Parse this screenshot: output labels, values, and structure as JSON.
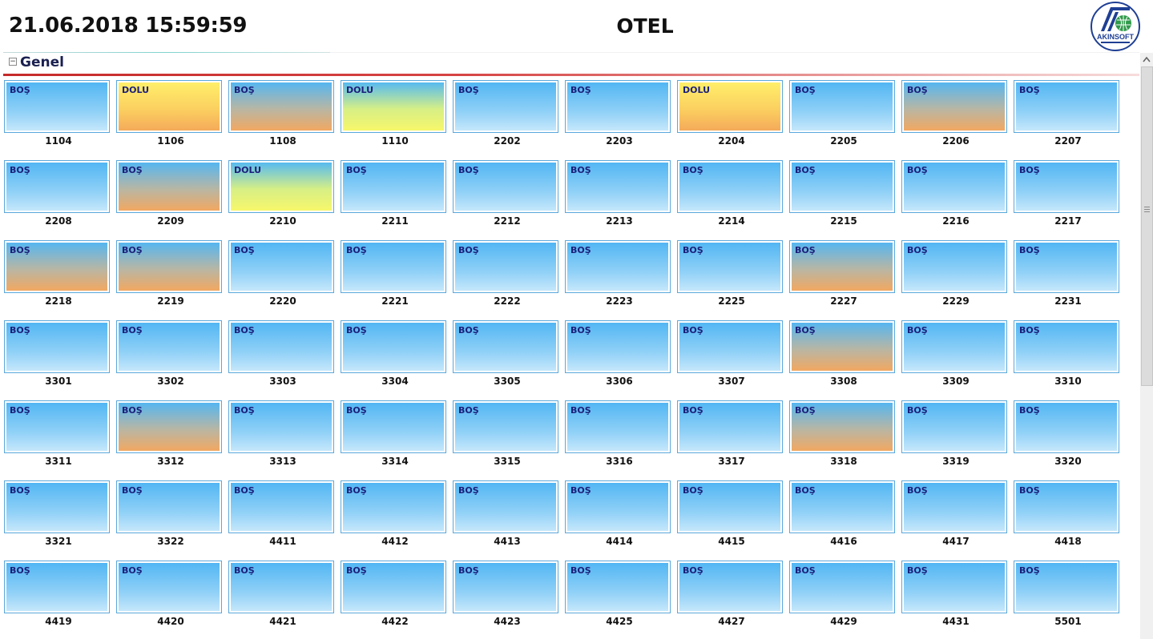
{
  "header": {
    "datetime": "21.06.2018 15:59:59",
    "title": "OTEL",
    "logo_text": "AKINSOFT"
  },
  "group": {
    "title": "Genel",
    "collapse_symbol": "−"
  },
  "colors": {
    "bos": "#52b6f3",
    "dolu": "#fbd060",
    "accent_rule": "#c62a2a",
    "tile_border": "#5aa8dc"
  },
  "rooms": [
    {
      "no": "1104",
      "status": "BOŞ",
      "style": "bos"
    },
    {
      "no": "1106",
      "status": "DOLU",
      "style": "dolu"
    },
    {
      "no": "1108",
      "status": "BOŞ",
      "style": "dirty"
    },
    {
      "no": "1110",
      "status": "DOLU",
      "style": "dolu2"
    },
    {
      "no": "2202",
      "status": "BOŞ",
      "style": "bos"
    },
    {
      "no": "2203",
      "status": "BOŞ",
      "style": "bos"
    },
    {
      "no": "2204",
      "status": "DOLU",
      "style": "dolu"
    },
    {
      "no": "2205",
      "status": "BOŞ",
      "style": "bos"
    },
    {
      "no": "2206",
      "status": "BOŞ",
      "style": "dirty"
    },
    {
      "no": "2207",
      "status": "BOŞ",
      "style": "bos"
    },
    {
      "no": "2208",
      "status": "BOŞ",
      "style": "bos"
    },
    {
      "no": "2209",
      "status": "BOŞ",
      "style": "dirty"
    },
    {
      "no": "2210",
      "status": "DOLU",
      "style": "dolu2"
    },
    {
      "no": "2211",
      "status": "BOŞ",
      "style": "bos"
    },
    {
      "no": "2212",
      "status": "BOŞ",
      "style": "bos"
    },
    {
      "no": "2213",
      "status": "BOŞ",
      "style": "bos"
    },
    {
      "no": "2214",
      "status": "BOŞ",
      "style": "bos"
    },
    {
      "no": "2215",
      "status": "BOŞ",
      "style": "bos"
    },
    {
      "no": "2216",
      "status": "BOŞ",
      "style": "bos"
    },
    {
      "no": "2217",
      "status": "BOŞ",
      "style": "bos"
    },
    {
      "no": "2218",
      "status": "BOŞ",
      "style": "dirty"
    },
    {
      "no": "2219",
      "status": "BOŞ",
      "style": "dirty"
    },
    {
      "no": "2220",
      "status": "BOŞ",
      "style": "bos"
    },
    {
      "no": "2221",
      "status": "BOŞ",
      "style": "bos"
    },
    {
      "no": "2222",
      "status": "BOŞ",
      "style": "bos"
    },
    {
      "no": "2223",
      "status": "BOŞ",
      "style": "bos"
    },
    {
      "no": "2225",
      "status": "BOŞ",
      "style": "bos"
    },
    {
      "no": "2227",
      "status": "BOŞ",
      "style": "dirty"
    },
    {
      "no": "2229",
      "status": "BOŞ",
      "style": "bos"
    },
    {
      "no": "2231",
      "status": "BOŞ",
      "style": "bos"
    },
    {
      "no": "3301",
      "status": "BOŞ",
      "style": "bos"
    },
    {
      "no": "3302",
      "status": "BOŞ",
      "style": "bos"
    },
    {
      "no": "3303",
      "status": "BOŞ",
      "style": "bos"
    },
    {
      "no": "3304",
      "status": "BOŞ",
      "style": "bos"
    },
    {
      "no": "3305",
      "status": "BOŞ",
      "style": "bos"
    },
    {
      "no": "3306",
      "status": "BOŞ",
      "style": "bos"
    },
    {
      "no": "3307",
      "status": "BOŞ",
      "style": "bos"
    },
    {
      "no": "3308",
      "status": "BOŞ",
      "style": "dirty"
    },
    {
      "no": "3309",
      "status": "BOŞ",
      "style": "bos"
    },
    {
      "no": "3310",
      "status": "BOŞ",
      "style": "bos"
    },
    {
      "no": "3311",
      "status": "BOŞ",
      "style": "bos"
    },
    {
      "no": "3312",
      "status": "BOŞ",
      "style": "dirty"
    },
    {
      "no": "3313",
      "status": "BOŞ",
      "style": "bos"
    },
    {
      "no": "3314",
      "status": "BOŞ",
      "style": "bos"
    },
    {
      "no": "3315",
      "status": "BOŞ",
      "style": "bos"
    },
    {
      "no": "3316",
      "status": "BOŞ",
      "style": "bos"
    },
    {
      "no": "3317",
      "status": "BOŞ",
      "style": "bos"
    },
    {
      "no": "3318",
      "status": "BOŞ",
      "style": "dirty"
    },
    {
      "no": "3319",
      "status": "BOŞ",
      "style": "bos"
    },
    {
      "no": "3320",
      "status": "BOŞ",
      "style": "bos"
    },
    {
      "no": "3321",
      "status": "BOŞ",
      "style": "bos"
    },
    {
      "no": "3322",
      "status": "BOŞ",
      "style": "bos"
    },
    {
      "no": "4411",
      "status": "BOŞ",
      "style": "bos"
    },
    {
      "no": "4412",
      "status": "BOŞ",
      "style": "bos"
    },
    {
      "no": "4413",
      "status": "BOŞ",
      "style": "bos"
    },
    {
      "no": "4414",
      "status": "BOŞ",
      "style": "bos"
    },
    {
      "no": "4415",
      "status": "BOŞ",
      "style": "bos"
    },
    {
      "no": "4416",
      "status": "BOŞ",
      "style": "bos"
    },
    {
      "no": "4417",
      "status": "BOŞ",
      "style": "bos"
    },
    {
      "no": "4418",
      "status": "BOŞ",
      "style": "bos"
    },
    {
      "no": "4419",
      "status": "BOŞ",
      "style": "bos"
    },
    {
      "no": "4420",
      "status": "BOŞ",
      "style": "bos"
    },
    {
      "no": "4421",
      "status": "BOŞ",
      "style": "bos"
    },
    {
      "no": "4422",
      "status": "BOŞ",
      "style": "bos"
    },
    {
      "no": "4423",
      "status": "BOŞ",
      "style": "bos"
    },
    {
      "no": "4425",
      "status": "BOŞ",
      "style": "bos"
    },
    {
      "no": "4427",
      "status": "BOŞ",
      "style": "bos"
    },
    {
      "no": "4429",
      "status": "BOŞ",
      "style": "bos"
    },
    {
      "no": "4431",
      "status": "BOŞ",
      "style": "bos"
    },
    {
      "no": "5501",
      "status": "BOŞ",
      "style": "bos"
    }
  ]
}
